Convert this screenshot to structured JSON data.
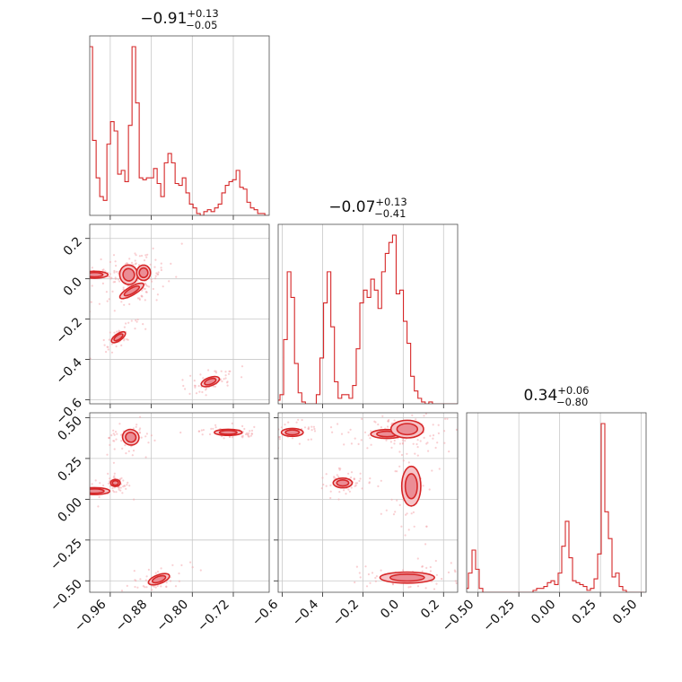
{
  "figure": {
    "type": "corner",
    "colors": {
      "accent": "#d62728",
      "fill_light": "#f6c4c8",
      "fill_dark": "#eb8d95",
      "scatter": "#f4a8ad"
    }
  },
  "chart_data": {
    "type": "corner",
    "grid": true,
    "parameters": [
      {
        "title": {
          "median": "-0.91",
          "plus": "+0.13",
          "minus": "-0.05"
        },
        "range": [
          -1.0,
          -0.65
        ],
        "ticks": [
          -0.96,
          -0.88,
          -0.8,
          -0.72
        ],
        "tick_labels": [
          "−0.96",
          "−0.88",
          "−0.80",
          "−0.72"
        ]
      },
      {
        "title": {
          "median": "-0.07",
          "plus": "+0.13",
          "minus": "-0.41"
        },
        "range": [
          -0.62,
          0.27
        ],
        "ticks": [
          -0.6,
          -0.4,
          -0.2,
          0.0,
          0.2
        ],
        "tick_labels": [
          "−0.6",
          "−0.4",
          "−0.2",
          "0.0",
          "0.2"
        ]
      },
      {
        "title": {
          "median": "0.34",
          "plus": "+0.06",
          "minus": "-0.80"
        },
        "range": [
          -0.57,
          0.53
        ],
        "ticks": [
          -0.5,
          -0.25,
          0.0,
          0.25,
          0.5
        ],
        "tick_labels": [
          "−0.50",
          "−0.25",
          "0.00",
          "0.25",
          "0.50"
        ]
      }
    ],
    "histograms": [
      {
        "parameter": 0,
        "x": [
          -0.998,
          -0.991,
          -0.984,
          -0.977,
          -0.97,
          -0.963,
          -0.956,
          -0.949,
          -0.942,
          -0.935,
          -0.928,
          -0.921,
          -0.914,
          -0.907,
          -0.9,
          -0.893,
          -0.886,
          -0.879,
          -0.872,
          -0.865,
          -0.858,
          -0.851,
          -0.844,
          -0.837,
          -0.83,
          -0.823,
          -0.816,
          -0.809,
          -0.802,
          -0.795,
          -0.788,
          -0.781,
          -0.774,
          -0.767,
          -0.76,
          -0.753,
          -0.746,
          -0.739,
          -0.732,
          -0.725,
          -0.718,
          -0.711,
          -0.704,
          -0.697,
          -0.69,
          -0.683,
          -0.676,
          -0.669,
          -0.662,
          -0.655
        ],
        "counts": [
          0.9,
          0.4,
          0.2,
          0.1,
          0.08,
          0.38,
          0.5,
          0.45,
          0.22,
          0.24,
          0.18,
          0.48,
          0.9,
          0.6,
          0.2,
          0.19,
          0.2,
          0.2,
          0.25,
          0.17,
          0.1,
          0.28,
          0.33,
          0.28,
          0.17,
          0.16,
          0.2,
          0.12,
          0.06,
          0.04,
          0.01,
          0.0,
          0.02,
          0.03,
          0.02,
          0.04,
          0.06,
          0.12,
          0.16,
          0.18,
          0.19,
          0.24,
          0.15,
          0.14,
          0.07,
          0.04,
          0.03,
          0.01,
          0.01,
          0.0
        ]
      },
      {
        "parameter": 1,
        "x": [
          -0.62,
          -0.602,
          -0.584,
          -0.566,
          -0.548,
          -0.53,
          -0.512,
          -0.494,
          -0.476,
          -0.458,
          -0.44,
          -0.422,
          -0.404,
          -0.386,
          -0.368,
          -0.35,
          -0.332,
          -0.314,
          -0.296,
          -0.278,
          -0.26,
          -0.242,
          -0.224,
          -0.206,
          -0.188,
          -0.17,
          -0.152,
          -0.134,
          -0.116,
          -0.098,
          -0.08,
          -0.062,
          -0.044,
          -0.026,
          -0.008,
          0.01,
          0.028,
          0.046,
          0.064,
          0.082,
          0.1,
          0.118,
          0.136,
          0.154,
          0.172,
          0.19,
          0.208,
          0.226,
          0.244,
          0.262
        ],
        "counts": [
          0.02,
          0.05,
          0.35,
          0.72,
          0.58,
          0.22,
          0.06,
          0.01,
          0.0,
          0.0,
          0.0,
          0.05,
          0.25,
          0.55,
          0.72,
          0.42,
          0.12,
          0.03,
          0.05,
          0.05,
          0.03,
          0.1,
          0.3,
          0.55,
          0.62,
          0.58,
          0.68,
          0.62,
          0.52,
          0.72,
          0.82,
          0.88,
          0.92,
          0.6,
          0.62,
          0.45,
          0.33,
          0.15,
          0.07,
          0.03,
          0.01,
          0.0,
          0.01,
          0.0,
          0.0,
          0.0,
          0.0,
          0.0,
          0.0,
          0.0
        ]
      },
      {
        "parameter": 2,
        "x": [
          -0.57,
          -0.548,
          -0.526,
          -0.504,
          -0.482,
          -0.46,
          -0.438,
          -0.416,
          -0.394,
          -0.372,
          -0.35,
          -0.328,
          -0.306,
          -0.284,
          -0.262,
          -0.24,
          -0.218,
          -0.196,
          -0.174,
          -0.152,
          -0.13,
          -0.108,
          -0.086,
          -0.064,
          -0.042,
          -0.02,
          0.002,
          0.024,
          0.046,
          0.068,
          0.09,
          0.112,
          0.134,
          0.156,
          0.178,
          0.2,
          0.222,
          0.244,
          0.266,
          0.288,
          0.31,
          0.332,
          0.354,
          0.376,
          0.398,
          0.42,
          0.442,
          0.464,
          0.486,
          0.508
        ],
        "counts": [
          0.02,
          0.1,
          0.22,
          0.12,
          0.02,
          0.0,
          0.0,
          0.0,
          0.0,
          0.0,
          0.0,
          0.0,
          0.0,
          0.0,
          0.0,
          0.0,
          0.0,
          0.0,
          0.0,
          0.01,
          0.02,
          0.02,
          0.03,
          0.05,
          0.06,
          0.04,
          0.1,
          0.24,
          0.37,
          0.18,
          0.06,
          0.05,
          0.04,
          0.03,
          0.01,
          0.02,
          0.07,
          0.2,
          0.88,
          0.42,
          0.28,
          0.08,
          0.1,
          0.03,
          0.01,
          0.0,
          0.0,
          0.0,
          0.0,
          0.0
        ]
      }
    ],
    "pairs": [
      {
        "x_parameter": 0,
        "y_parameter": 1,
        "modes": [
          {
            "center": [
              -0.991,
              0.02
            ],
            "sx": 0.005,
            "sy": 0.05,
            "angle": 90,
            "w": 0.8
          },
          {
            "center": [
              -0.924,
              0.02
            ],
            "sx": 0.013,
            "sy": 0.036,
            "angle": -12,
            "w": 1.1
          },
          {
            "center": [
              -0.895,
              0.03
            ],
            "sx": 0.01,
            "sy": 0.028,
            "angle": 0,
            "w": 0.9
          },
          {
            "center": [
              -0.918,
              -0.06
            ],
            "sx": 0.006,
            "sy": 0.05,
            "angle": 60,
            "w": 0.8
          },
          {
            "center": [
              -0.944,
              -0.29
            ],
            "sx": 0.005,
            "sy": 0.03,
            "angle": 55,
            "w": 0.8
          },
          {
            "center": [
              -0.765,
              -0.51
            ],
            "sx": 0.006,
            "sy": 0.035,
            "angle": 70,
            "w": 1.0
          }
        ]
      },
      {
        "x_parameter": 0,
        "y_parameter": 2,
        "modes": [
          {
            "center": [
              -0.991,
              0.05
            ],
            "sx": 0.005,
            "sy": 0.07,
            "angle": 90,
            "w": 0.8
          },
          {
            "center": [
              -0.95,
              0.1
            ],
            "sx": 0.007,
            "sy": 0.016,
            "angle": 0,
            "w": 0.9
          },
          {
            "center": [
              -0.92,
              0.38
            ],
            "sx": 0.012,
            "sy": 0.035,
            "angle": 22,
            "w": 1.0
          },
          {
            "center": [
              -0.73,
              0.41
            ],
            "sx": 0.02,
            "sy": 0.012,
            "angle": 0,
            "w": 1.0
          },
          {
            "center": [
              -0.865,
              -0.49
            ],
            "sx": 0.016,
            "sy": 0.02,
            "angle": -20,
            "w": 0.9
          }
        ]
      },
      {
        "x_parameter": 1,
        "y_parameter": 2,
        "modes": [
          {
            "center": [
              -0.55,
              0.41
            ],
            "sx": 0.04,
            "sy": 0.018,
            "angle": 0,
            "w": 0.9
          },
          {
            "center": [
              -0.3,
              0.1
            ],
            "sx": 0.035,
            "sy": 0.022,
            "angle": 0,
            "w": 0.9
          },
          {
            "center": [
              -0.08,
              0.4
            ],
            "sx": 0.06,
            "sy": 0.02,
            "angle": 0,
            "w": 0.9
          },
          {
            "center": [
              0.02,
              0.43
            ],
            "sx": 0.06,
            "sy": 0.04,
            "angle": 0,
            "w": 1.1
          },
          {
            "center": [
              0.04,
              0.08
            ],
            "sx": 0.035,
            "sy": 0.09,
            "angle": 0,
            "w": 1.0
          },
          {
            "center": [
              0.02,
              -0.48
            ],
            "sx": 0.1,
            "sy": 0.025,
            "angle": 0,
            "w": 1.1
          }
        ]
      }
    ]
  }
}
